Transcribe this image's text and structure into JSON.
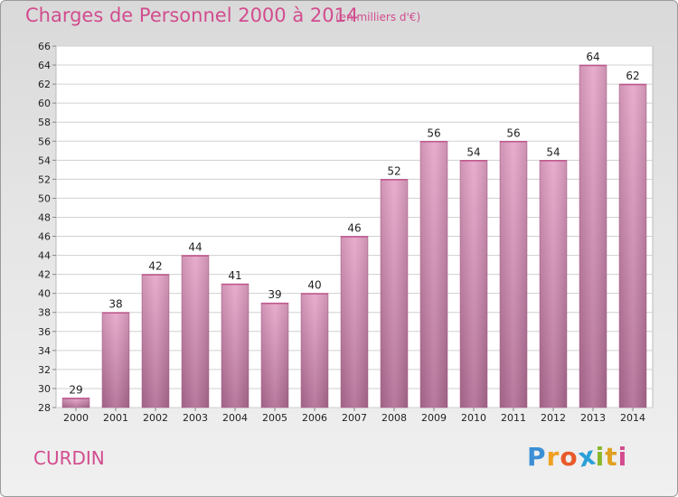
{
  "chart_data": {
    "type": "bar",
    "title": "Charges de Personnel 2000 à 2014",
    "subtitle": "(en milliers d'€)",
    "categories": [
      "2000",
      "2001",
      "2002",
      "2003",
      "2004",
      "2005",
      "2006",
      "2007",
      "2008",
      "2009",
      "2010",
      "2011",
      "2012",
      "2013",
      "2014"
    ],
    "values": [
      29,
      38,
      42,
      44,
      41,
      39,
      40,
      46,
      52,
      56,
      54,
      56,
      54,
      64,
      62
    ],
    "ylim": [
      28,
      66
    ],
    "yticks": [
      28,
      30,
      32,
      34,
      36,
      38,
      40,
      42,
      44,
      46,
      48,
      50,
      52,
      54,
      56,
      58,
      60,
      62,
      64,
      66
    ],
    "grid": true,
    "bar_color": "#d27aa6",
    "accent_color": "#d24c8e"
  },
  "commune": "CURDIN",
  "logo": {
    "letters": [
      "P",
      "r",
      "o",
      "x",
      "i",
      "t",
      "i"
    ],
    "colors": [
      "#3b8fd6",
      "#f0a020",
      "#e85a2a",
      "#2aa0d8",
      "#88b82a",
      "#e0a020",
      "#d24c8e"
    ]
  }
}
